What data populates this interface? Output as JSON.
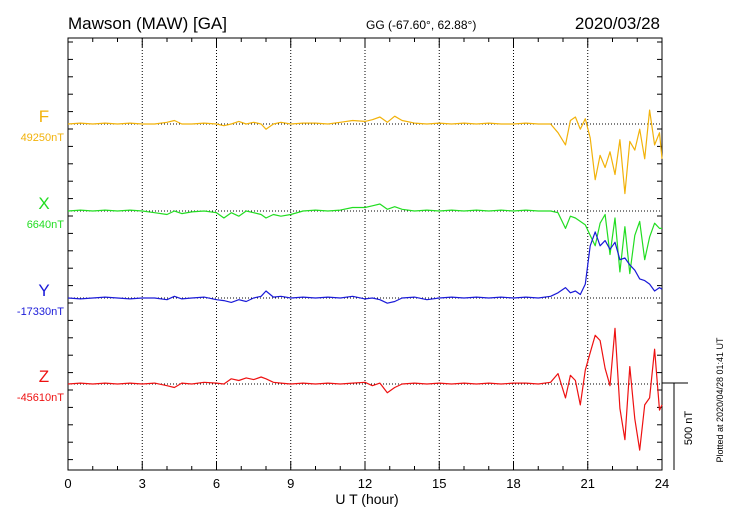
{
  "header": {
    "station": "Mawson (MAW)  [GA]",
    "coords": "GG (-67.60°,  62.88°)",
    "date": "2020/03/28"
  },
  "plotted_note": "Plotted at 2020/04/28 01:41  UT",
  "scale_label": "500 nT",
  "chart_data": {
    "type": "line",
    "title": "",
    "xlabel": "U T (hour)",
    "ylabel": "",
    "xlim": [
      0,
      24
    ],
    "x_ticks": [
      "0",
      "3",
      "6",
      "9",
      "12",
      "15",
      "18",
      "21",
      "24"
    ],
    "grid": "vertical dotted every 3 h",
    "scale_bar_nT": 500,
    "series": [
      {
        "name": "F",
        "baseline_label": "49250nT",
        "color": "#f2b20a",
        "x": [
          0,
          0.5,
          1,
          1.5,
          2,
          2.5,
          3,
          3.5,
          4,
          4.3,
          4.6,
          5,
          5.5,
          6,
          6.3,
          6.6,
          6.9,
          7.2,
          7.5,
          7.8,
          8,
          8.3,
          8.6,
          9,
          9.5,
          10,
          10.5,
          11,
          11.5,
          12,
          12.3,
          12.6,
          12.9,
          13.2,
          13.5,
          14,
          14.5,
          15,
          15.5,
          16,
          16.5,
          17,
          17.5,
          18,
          18.5,
          19,
          19.5,
          19.8,
          20.1,
          20.3,
          20.5,
          20.7,
          20.9,
          21.1,
          21.3,
          21.5,
          21.7,
          21.9,
          22.1,
          22.3,
          22.5,
          22.7,
          22.9,
          23.1,
          23.3,
          23.5,
          23.7,
          23.9,
          24
        ],
        "y": [
          0,
          5,
          0,
          5,
          0,
          5,
          0,
          0,
          10,
          20,
          0,
          0,
          5,
          0,
          -10,
          0,
          15,
          0,
          10,
          0,
          -30,
          0,
          10,
          0,
          5,
          5,
          0,
          10,
          20,
          15,
          25,
          40,
          10,
          45,
          20,
          5,
          0,
          5,
          0,
          5,
          0,
          5,
          0,
          0,
          5,
          0,
          0,
          -50,
          -120,
          20,
          40,
          -30,
          30,
          -80,
          -320,
          -180,
          -250,
          -160,
          -290,
          -90,
          -400,
          -100,
          -150,
          -30,
          -200,
          80,
          -120,
          -50,
          -200
        ]
      },
      {
        "name": "X",
        "baseline_label": "6640nT",
        "color": "#22dd22",
        "x": [
          0,
          0.5,
          1,
          1.5,
          2,
          2.5,
          3,
          3.5,
          4,
          4.3,
          4.6,
          5,
          5.5,
          6,
          6.3,
          6.6,
          6.9,
          7.2,
          7.5,
          7.8,
          8,
          8.3,
          8.6,
          9,
          9.5,
          10,
          10.5,
          11,
          11.5,
          12,
          12.3,
          12.6,
          12.9,
          13.2,
          13.5,
          14,
          14.5,
          15,
          15.5,
          16,
          16.5,
          17,
          17.5,
          18,
          18.5,
          19,
          19.5,
          19.8,
          20.1,
          20.3,
          20.5,
          20.7,
          20.9,
          21.1,
          21.3,
          21.5,
          21.7,
          21.9,
          22.1,
          22.3,
          22.5,
          22.7,
          22.9,
          23.1,
          23.3,
          23.5,
          23.7,
          23.9,
          24
        ],
        "y": [
          0,
          5,
          0,
          5,
          0,
          5,
          0,
          -10,
          -20,
          0,
          -15,
          -5,
          0,
          -10,
          -40,
          -10,
          -30,
          0,
          -10,
          -20,
          -40,
          -20,
          -30,
          -20,
          0,
          5,
          0,
          5,
          20,
          20,
          30,
          40,
          10,
          25,
          10,
          0,
          5,
          0,
          5,
          0,
          5,
          0,
          5,
          0,
          5,
          0,
          0,
          -10,
          -100,
          -30,
          -40,
          -60,
          -80,
          -140,
          -200,
          -70,
          -20,
          -250,
          -40,
          -350,
          -90,
          -360,
          -140,
          -60,
          -280,
          -150,
          -70,
          -100,
          -100
        ]
      },
      {
        "name": "Y",
        "baseline_label": "-17330nT",
        "color": "#1a1ad8",
        "x": [
          0,
          0.5,
          1,
          1.5,
          2,
          2.5,
          3,
          3.5,
          4,
          4.3,
          4.6,
          5,
          5.5,
          6,
          6.3,
          6.6,
          6.9,
          7.2,
          7.5,
          7.8,
          8,
          8.3,
          8.6,
          9,
          9.5,
          10,
          10.5,
          11,
          11.5,
          12,
          12.3,
          12.6,
          12.9,
          13.2,
          13.5,
          14,
          14.5,
          15,
          15.5,
          16,
          16.5,
          17,
          17.5,
          18,
          18.5,
          19,
          19.5,
          19.8,
          20.1,
          20.3,
          20.5,
          20.7,
          20.9,
          21.1,
          21.3,
          21.5,
          21.7,
          21.9,
          22.1,
          22.3,
          22.5,
          22.7,
          22.9,
          23.1,
          23.3,
          23.5,
          23.7,
          23.9,
          24
        ],
        "y": [
          0,
          -5,
          0,
          5,
          0,
          -5,
          0,
          0,
          -10,
          10,
          -5,
          0,
          5,
          -10,
          -15,
          -25,
          -10,
          -20,
          0,
          10,
          40,
          5,
          10,
          0,
          5,
          0,
          5,
          0,
          10,
          -5,
          0,
          -10,
          -30,
          -20,
          0,
          5,
          -10,
          0,
          5,
          0,
          5,
          0,
          5,
          0,
          5,
          0,
          10,
          30,
          60,
          30,
          40,
          20,
          80,
          300,
          380,
          300,
          330,
          280,
          320,
          220,
          230,
          190,
          160,
          110,
          100,
          80,
          40,
          60,
          50
        ]
      },
      {
        "name": "Z",
        "baseline_label": "-45610nT",
        "color": "#ee1111",
        "x": [
          0,
          0.5,
          1,
          1.5,
          2,
          2.5,
          3,
          3.5,
          4,
          4.3,
          4.6,
          5,
          5.5,
          6,
          6.3,
          6.6,
          6.9,
          7.2,
          7.5,
          7.8,
          8,
          8.3,
          8.6,
          9,
          9.5,
          10,
          10.5,
          11,
          11.5,
          12,
          12.3,
          12.6,
          12.9,
          13.2,
          13.5,
          14,
          14.5,
          15,
          15.5,
          16,
          16.5,
          17,
          17.5,
          18,
          18.5,
          19,
          19.5,
          19.8,
          20.1,
          20.3,
          20.5,
          20.7,
          20.9,
          21.1,
          21.3,
          21.5,
          21.7,
          21.9,
          22.1,
          22.3,
          22.5,
          22.7,
          22.9,
          23.1,
          23.3,
          23.5,
          23.7,
          23.9,
          24
        ],
        "y": [
          0,
          5,
          0,
          5,
          0,
          5,
          0,
          5,
          -10,
          -20,
          5,
          0,
          10,
          5,
          0,
          30,
          20,
          35,
          25,
          40,
          30,
          10,
          5,
          0,
          5,
          0,
          5,
          0,
          5,
          10,
          -10,
          5,
          -50,
          -20,
          0,
          5,
          0,
          5,
          0,
          5,
          0,
          5,
          0,
          5,
          5,
          0,
          10,
          60,
          -80,
          50,
          20,
          -120,
          80,
          180,
          280,
          250,
          90,
          -10,
          320,
          -140,
          -320,
          100,
          -200,
          -380,
          -120,
          -80,
          200,
          -150,
          -120
        ]
      }
    ]
  }
}
